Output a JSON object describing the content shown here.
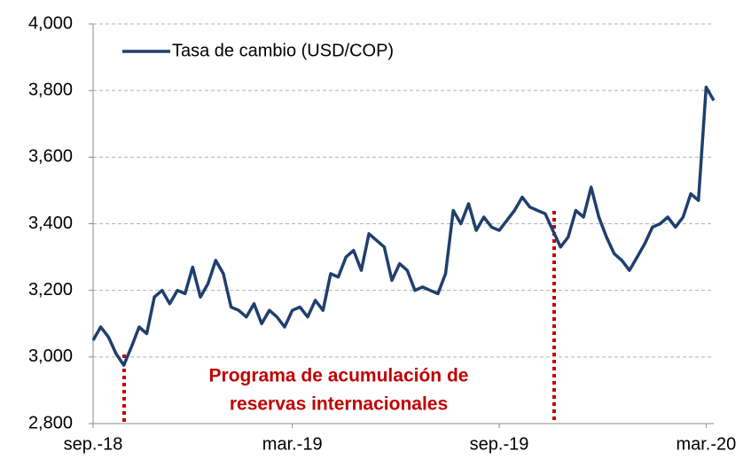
{
  "chart_data": {
    "type": "line",
    "categories": [
      "sep.-18",
      null,
      null,
      null,
      null,
      null,
      null,
      null,
      null,
      null,
      null,
      null,
      null,
      null,
      null,
      null,
      null,
      null,
      null,
      null,
      null,
      null,
      null,
      null,
      null,
      null,
      "mar.-19",
      null,
      null,
      null,
      null,
      null,
      null,
      null,
      null,
      null,
      null,
      null,
      null,
      null,
      null,
      null,
      null,
      null,
      null,
      null,
      null,
      null,
      null,
      null,
      null,
      null,
      null,
      "sep.-19",
      null,
      null,
      null,
      null,
      null,
      null,
      null,
      null,
      null,
      null,
      null,
      null,
      null,
      null,
      null,
      null,
      null,
      null,
      null,
      null,
      null,
      null,
      null,
      null,
      null,
      null,
      "mar.-20",
      null
    ],
    "series": [
      {
        "name": "Tasa de cambio (USD/COP)",
        "color": "#1f3f6e",
        "values": [
          3050,
          3090,
          3060,
          3010,
          2975,
          3030,
          3090,
          3070,
          3180,
          3200,
          3160,
          3200,
          3190,
          3270,
          3180,
          3220,
          3290,
          3250,
          3150,
          3140,
          3120,
          3160,
          3100,
          3140,
          3120,
          3090,
          3140,
          3150,
          3120,
          3170,
          3140,
          3250,
          3240,
          3300,
          3320,
          3260,
          3370,
          3350,
          3330,
          3230,
          3280,
          3260,
          3200,
          3210,
          3200,
          3190,
          3250,
          3440,
          3400,
          3460,
          3380,
          3420,
          3390,
          3380,
          3410,
          3440,
          3480,
          3450,
          3440,
          3430,
          3380,
          3330,
          3360,
          3440,
          3420,
          3510,
          3420,
          3360,
          3310,
          3290,
          3260,
          3300,
          3340,
          3390,
          3400,
          3420,
          3390,
          3420,
          3490,
          3470,
          3810,
          3770
        ]
      }
    ],
    "ylim": [
      2800,
      4000
    ],
    "yticks": [
      {
        "value": 2800,
        "label": "2,800"
      },
      {
        "value": 3000,
        "label": "3,000"
      },
      {
        "value": 3200,
        "label": "3,200"
      },
      {
        "value": 3400,
        "label": "3,400"
      },
      {
        "value": 3600,
        "label": "3,600"
      },
      {
        "value": 3800,
        "label": "3,800"
      },
      {
        "value": 4000,
        "label": "4,000"
      }
    ],
    "grid": true,
    "annotations": [
      "Programa de acumulación de",
      "reservas internacionales"
    ]
  }
}
